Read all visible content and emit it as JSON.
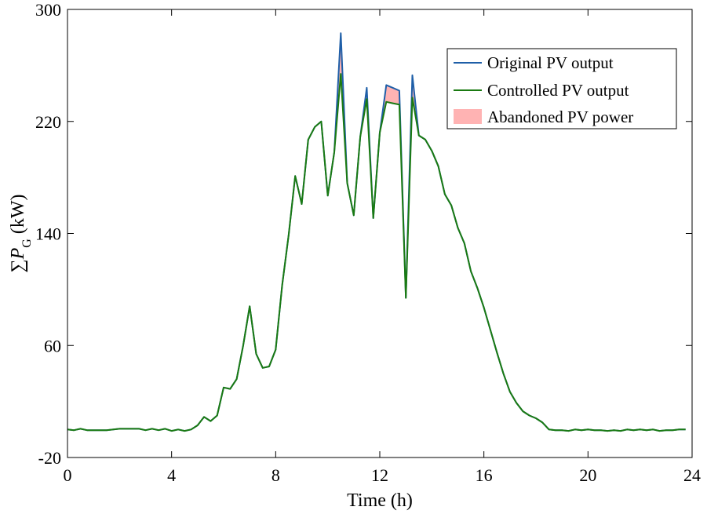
{
  "chart_data": {
    "type": "line",
    "xlabel": "Time (h)",
    "ylabel_sigma": "∑",
    "ylabel_var": "P",
    "ylabel_sub": "G",
    "ylabel_unit": " (kW)",
    "xlim": [
      0,
      24
    ],
    "ylim": [
      -20,
      300
    ],
    "xticks": [
      0,
      4,
      8,
      12,
      16,
      20,
      24
    ],
    "yticks": [
      -20,
      60,
      140,
      220,
      300
    ],
    "grid": false,
    "legend_position": "top-right",
    "legend": [
      {
        "label": "Original PV output",
        "color": "#1f5fa8",
        "kind": "line"
      },
      {
        "label": "Controlled PV output",
        "color": "#1a7a12",
        "kind": "line"
      },
      {
        "label": "Abandoned PV power",
        "color": "#ffb3b3",
        "kind": "patch"
      }
    ],
    "series": [
      {
        "name": "Original PV output",
        "color": "#1f5fa8",
        "points": [
          [
            0,
            0
          ],
          [
            0.25,
            -0.5
          ],
          [
            0.5,
            0.5
          ],
          [
            0.75,
            -0.5
          ],
          [
            1,
            -0.5
          ],
          [
            1.5,
            -0.5
          ],
          [
            2,
            0.5
          ],
          [
            2.5,
            0.5
          ],
          [
            2.75,
            0.5
          ],
          [
            3,
            -0.5
          ],
          [
            3.25,
            0.5
          ],
          [
            3.5,
            -0.5
          ],
          [
            3.75,
            0.5
          ],
          [
            4,
            -1
          ],
          [
            4.25,
            0
          ],
          [
            4.5,
            -1
          ],
          [
            4.75,
            0
          ],
          [
            5,
            3
          ],
          [
            5.25,
            9
          ],
          [
            5.5,
            6
          ],
          [
            5.75,
            10
          ],
          [
            6,
            30
          ],
          [
            6.25,
            29
          ],
          [
            6.5,
            36
          ],
          [
            6.75,
            60
          ],
          [
            7,
            88
          ],
          [
            7.25,
            54
          ],
          [
            7.5,
            44
          ],
          [
            7.75,
            45
          ],
          [
            8,
            57
          ],
          [
            8.25,
            103
          ],
          [
            8.5,
            139
          ],
          [
            8.75,
            181
          ],
          [
            9,
            161
          ],
          [
            9.25,
            207
          ],
          [
            9.5,
            216
          ],
          [
            9.75,
            220
          ],
          [
            10,
            167
          ],
          [
            10.25,
            198
          ],
          [
            10.5,
            283
          ],
          [
            10.75,
            176
          ],
          [
            11,
            153
          ],
          [
            11.25,
            209
          ],
          [
            11.5,
            244
          ],
          [
            11.75,
            151
          ],
          [
            12,
            212
          ],
          [
            12.25,
            246
          ],
          [
            12.5,
            244
          ],
          [
            12.75,
            242
          ],
          [
            13,
            94
          ],
          [
            13.25,
            253
          ],
          [
            13.5,
            210
          ],
          [
            13.75,
            207
          ],
          [
            14,
            199
          ],
          [
            14.25,
            188
          ],
          [
            14.5,
            168
          ],
          [
            14.75,
            160
          ],
          [
            15,
            144
          ],
          [
            15.25,
            133
          ],
          [
            15.5,
            113
          ],
          [
            15.75,
            101
          ],
          [
            16,
            87
          ],
          [
            16.25,
            71
          ],
          [
            16.5,
            55
          ],
          [
            16.75,
            40
          ],
          [
            17,
            27
          ],
          [
            17.25,
            19
          ],
          [
            17.5,
            13
          ],
          [
            17.75,
            10
          ],
          [
            18,
            8
          ],
          [
            18.25,
            5
          ],
          [
            18.5,
            0
          ],
          [
            18.75,
            -0.5
          ],
          [
            19,
            -0.5
          ],
          [
            19.25,
            -1
          ],
          [
            19.5,
            0
          ],
          [
            19.75,
            -0.5
          ],
          [
            20,
            0
          ],
          [
            20.25,
            -0.5
          ],
          [
            20.5,
            -0.5
          ],
          [
            20.75,
            -1
          ],
          [
            21,
            -0.5
          ],
          [
            21.25,
            -1
          ],
          [
            21.5,
            0
          ],
          [
            21.75,
            -0.5
          ],
          [
            22,
            0
          ],
          [
            22.25,
            -0.5
          ],
          [
            22.5,
            0
          ],
          [
            22.75,
            -1
          ],
          [
            23,
            -0.5
          ],
          [
            23.25,
            -0.5
          ],
          [
            23.5,
            0
          ],
          [
            23.75,
            0
          ]
        ]
      },
      {
        "name": "Controlled PV output",
        "color": "#1a7a12",
        "points": [
          [
            0,
            0
          ],
          [
            0.25,
            -0.5
          ],
          [
            0.5,
            0.5
          ],
          [
            0.75,
            -0.5
          ],
          [
            1,
            -0.5
          ],
          [
            1.5,
            -0.5
          ],
          [
            2,
            0.5
          ],
          [
            2.5,
            0.5
          ],
          [
            2.75,
            0.5
          ],
          [
            3,
            -0.5
          ],
          [
            3.25,
            0.5
          ],
          [
            3.5,
            -0.5
          ],
          [
            3.75,
            0.5
          ],
          [
            4,
            -1
          ],
          [
            4.25,
            0
          ],
          [
            4.5,
            -1
          ],
          [
            4.75,
            0
          ],
          [
            5,
            3
          ],
          [
            5.25,
            9
          ],
          [
            5.5,
            6
          ],
          [
            5.75,
            10
          ],
          [
            6,
            30
          ],
          [
            6.25,
            29
          ],
          [
            6.5,
            36
          ],
          [
            6.75,
            60
          ],
          [
            7,
            88
          ],
          [
            7.25,
            54
          ],
          [
            7.5,
            44
          ],
          [
            7.75,
            45
          ],
          [
            8,
            57
          ],
          [
            8.25,
            103
          ],
          [
            8.5,
            139
          ],
          [
            8.75,
            181
          ],
          [
            9,
            161
          ],
          [
            9.25,
            207
          ],
          [
            9.5,
            216
          ],
          [
            9.75,
            220
          ],
          [
            10,
            167
          ],
          [
            10.25,
            198
          ],
          [
            10.5,
            254
          ],
          [
            10.75,
            176
          ],
          [
            11,
            153
          ],
          [
            11.25,
            209
          ],
          [
            11.5,
            236
          ],
          [
            11.75,
            151
          ],
          [
            12,
            212
          ],
          [
            12.25,
            234
          ],
          [
            12.5,
            233
          ],
          [
            12.75,
            232
          ],
          [
            13,
            94
          ],
          [
            13.25,
            237
          ],
          [
            13.5,
            210
          ],
          [
            13.75,
            207
          ],
          [
            14,
            199
          ],
          [
            14.25,
            188
          ],
          [
            14.5,
            168
          ],
          [
            14.75,
            160
          ],
          [
            15,
            144
          ],
          [
            15.25,
            133
          ],
          [
            15.5,
            113
          ],
          [
            15.75,
            101
          ],
          [
            16,
            87
          ],
          [
            16.25,
            71
          ],
          [
            16.5,
            55
          ],
          [
            16.75,
            40
          ],
          [
            17,
            27
          ],
          [
            17.25,
            19
          ],
          [
            17.5,
            13
          ],
          [
            17.75,
            10
          ],
          [
            18,
            8
          ],
          [
            18.25,
            5
          ],
          [
            18.5,
            0
          ],
          [
            18.75,
            -0.5
          ],
          [
            19,
            -0.5
          ],
          [
            19.25,
            -1
          ],
          [
            19.5,
            0
          ],
          [
            19.75,
            -0.5
          ],
          [
            20,
            0
          ],
          [
            20.25,
            -0.5
          ],
          [
            20.5,
            -0.5
          ],
          [
            20.75,
            -1
          ],
          [
            21,
            -0.5
          ],
          [
            21.25,
            -1
          ],
          [
            21.5,
            0
          ],
          [
            21.75,
            -0.5
          ],
          [
            22,
            0
          ],
          [
            22.25,
            -0.5
          ],
          [
            22.5,
            0
          ],
          [
            22.75,
            -1
          ],
          [
            23,
            -0.5
          ],
          [
            23.25,
            -0.5
          ],
          [
            23.5,
            0
          ],
          [
            23.75,
            0
          ]
        ]
      }
    ]
  }
}
